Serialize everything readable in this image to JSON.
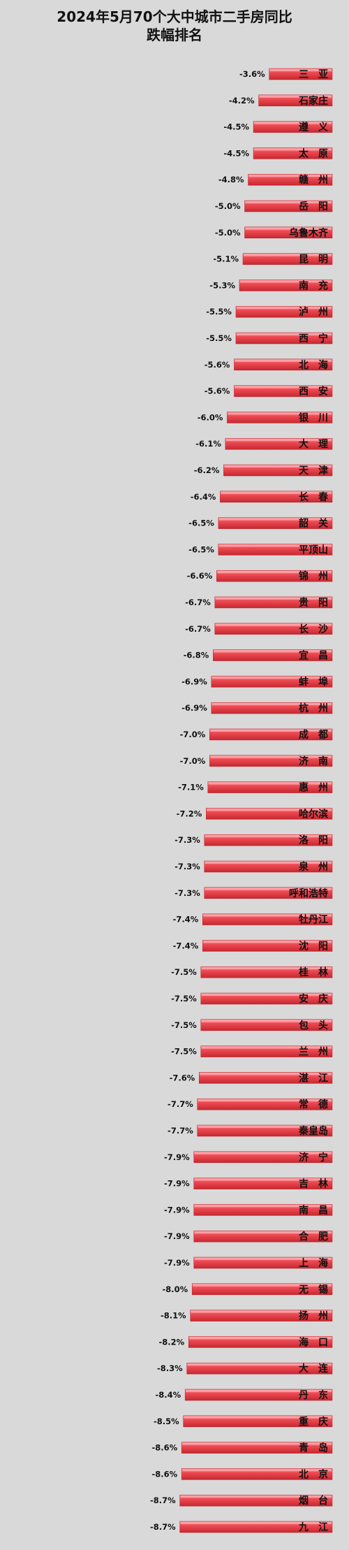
{
  "chart_data": {
    "type": "bar",
    "orientation": "horizontal",
    "title": "2024年5月70个大中城市二手房同比跌幅排名",
    "title_lines": [
      "2024年5月70个大中城市二手房同比",
      "跌幅排名"
    ],
    "xlabel": "",
    "ylabel": "",
    "grid": false,
    "legend": "none",
    "bar_color": "#e8474f",
    "value_format": "percent",
    "categories": [
      "三　亚",
      "石家庄",
      "遵　义",
      "太　原",
      "赣　州",
      "岳　阳",
      "乌鲁木齐",
      "昆　明",
      "南　充",
      "泸　州",
      "西　宁",
      "北　海",
      "西　安",
      "银　川",
      "大　理",
      "天　津",
      "长　春",
      "韶　关",
      "平顶山",
      "锦　州",
      "贵　阳",
      "长　沙",
      "宜　昌",
      "蚌　埠",
      "杭　州",
      "成　都",
      "济　南",
      "惠　州",
      "哈尔滨",
      "洛　阳",
      "泉　州",
      "呼和浩特",
      "牡丹江",
      "沈　阳",
      "桂　林",
      "安　庆",
      "包　头",
      "兰　州",
      "湛　江",
      "常　德",
      "秦皇岛",
      "济　宁",
      "吉　林",
      "南　昌",
      "合　肥",
      "上　海",
      "无　锡",
      "扬　州",
      "海　口",
      "大　连",
      "丹　东",
      "重　庆",
      "青　岛",
      "北　京",
      "烟　台",
      "九　江"
    ],
    "values": [
      -3.6,
      -4.2,
      -4.5,
      -4.5,
      -4.8,
      -5.0,
      -5.0,
      -5.1,
      -5.3,
      -5.5,
      -5.5,
      -5.6,
      -5.6,
      -6.0,
      -6.1,
      -6.2,
      -6.4,
      -6.5,
      -6.5,
      -6.6,
      -6.7,
      -6.7,
      -6.8,
      -6.9,
      -6.9,
      -7.0,
      -7.0,
      -7.1,
      -7.2,
      -7.3,
      -7.3,
      -7.3,
      -7.4,
      -7.4,
      -7.5,
      -7.5,
      -7.5,
      -7.5,
      -7.6,
      -7.7,
      -7.7,
      -7.9,
      -7.9,
      -7.9,
      -7.9,
      -7.9,
      -8.0,
      -8.1,
      -8.2,
      -8.3,
      -8.4,
      -8.5,
      -8.6,
      -8.6,
      -8.7,
      -8.7
    ]
  }
}
